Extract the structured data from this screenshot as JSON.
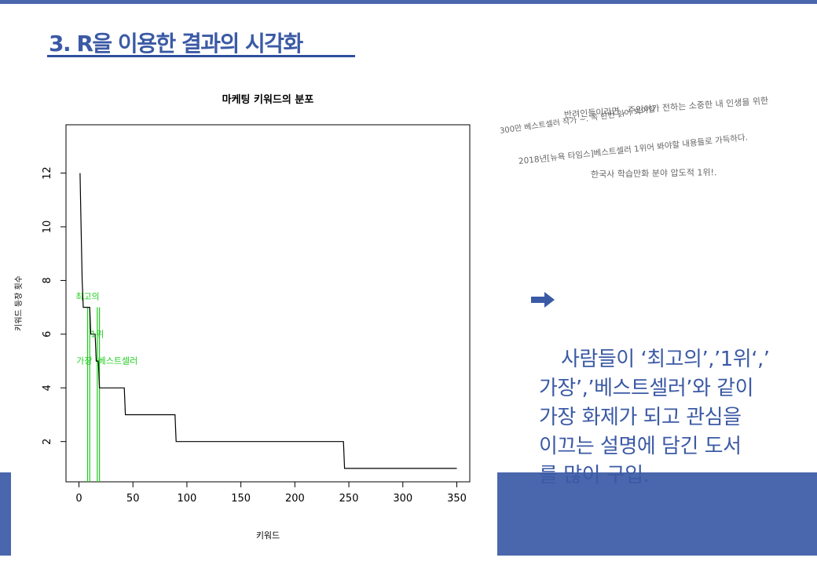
{
  "slide": {
    "title": "3. R을 이용한 결과의 시각화"
  },
  "chart_data": {
    "type": "line",
    "title": "마케팅 키워드의 분포",
    "xlabel": "키워드",
    "ylabel": "키워드 등장 횟수",
    "xlim": [
      -12,
      362
    ],
    "ylim": [
      0.5,
      13.8
    ],
    "x_ticks": [
      0,
      50,
      100,
      150,
      200,
      250,
      300,
      350
    ],
    "y_ticks": [
      2,
      4,
      6,
      8,
      10,
      12
    ],
    "series": [
      {
        "points": [
          [
            1,
            12
          ],
          [
            2,
            10
          ],
          [
            3,
            8
          ],
          [
            4,
            7
          ],
          [
            10,
            7
          ],
          [
            11,
            6
          ],
          [
            15,
            6
          ],
          [
            16,
            5
          ],
          [
            18,
            5
          ],
          [
            19,
            4
          ],
          [
            42,
            4
          ],
          [
            43,
            3
          ],
          [
            89,
            3
          ],
          [
            90,
            2
          ],
          [
            245,
            2
          ],
          [
            246,
            1
          ],
          [
            350,
            1
          ]
        ]
      }
    ],
    "highlights": {
      "color": "#22cc22",
      "verticals": [
        8,
        10,
        17,
        19
      ],
      "labels": [
        {
          "text": "최고의",
          "x": 8,
          "y": 7.3
        },
        {
          "text": "1위",
          "x": 17,
          "y": 5.9
        },
        {
          "text": "가장",
          "x": 5,
          "y": 4.9
        },
        {
          "text": "베스트셀러",
          "x": 36,
          "y": 4.9
        }
      ]
    }
  },
  "word_cloud": [
    "반려인들이라면 , 주인이가 전하는 소중한 내 인생을 위한",
    "300만 베스트셀러 작가 ~. 꼭 한번 읽어 봐야할",
    "2018년[뉴욕 타임스]베스트셀러 1위어 봐야할 내용들로 가득하다.",
    "한국사 학습만화 분야 압도적 1위!."
  ],
  "description": {
    "text": "사람들이 ‘최고의’,’1위‘,’\n가장’,’베스트셀러’와 같이\n가장 화제가 되고 관심을\n이끄는 설명에 담긴 도서\n를 많이 구입.",
    "arrow_icon": "right-arrow-icon"
  },
  "colors": {
    "accent": "#4a67ad",
    "title": "#3b5aa5",
    "highlight": "#22cc22"
  }
}
